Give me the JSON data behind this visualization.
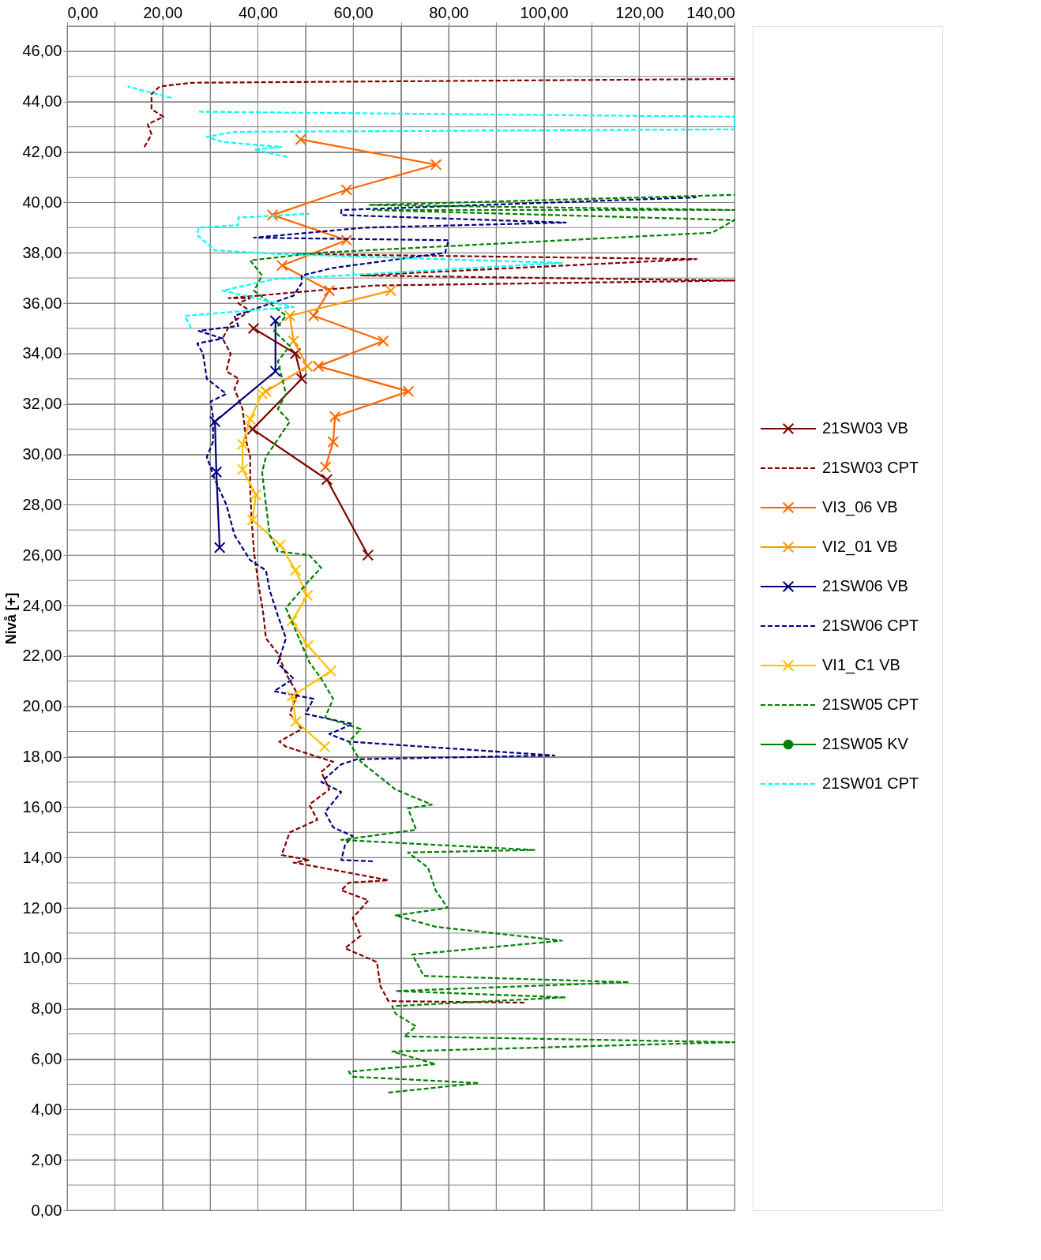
{
  "chart_data": {
    "type": "line",
    "ylabel": "Nivå [+]",
    "xlim": [
      0,
      140
    ],
    "ylim": [
      0,
      47
    ],
    "grid": true,
    "legend": "right",
    "xticks": [
      {
        "value": 0,
        "label": "0,00"
      },
      {
        "value": 10,
        "label": null
      },
      {
        "value": 20,
        "label": "20,00"
      },
      {
        "value": 30,
        "label": null
      },
      {
        "value": 40,
        "label": "40,00"
      },
      {
        "value": 50,
        "label": null
      },
      {
        "value": 60,
        "label": "60,00"
      },
      {
        "value": 70,
        "label": null
      },
      {
        "value": 80,
        "label": "80,00"
      },
      {
        "value": 90,
        "label": null
      },
      {
        "value": 100,
        "label": "100,00"
      },
      {
        "value": 110,
        "label": null
      },
      {
        "value": 120,
        "label": "120,00"
      },
      {
        "value": 130,
        "label": null
      },
      {
        "value": 140,
        "label": "140,00"
      }
    ],
    "yticks": [
      {
        "value": 0,
        "label": "0,00"
      },
      {
        "value": 1,
        "label": null
      },
      {
        "value": 2,
        "label": "2,00"
      },
      {
        "value": 3,
        "label": null
      },
      {
        "value": 4,
        "label": "4,00"
      },
      {
        "value": 5,
        "label": null
      },
      {
        "value": 6,
        "label": "6,00"
      },
      {
        "value": 7,
        "label": null
      },
      {
        "value": 8,
        "label": "8,00"
      },
      {
        "value": 9,
        "label": null
      },
      {
        "value": 10,
        "label": "10,00"
      },
      {
        "value": 11,
        "label": null
      },
      {
        "value": 12,
        "label": "12,00"
      },
      {
        "value": 13,
        "label": null
      },
      {
        "value": 14,
        "label": "14,00"
      },
      {
        "value": 15,
        "label": null
      },
      {
        "value": 16,
        "label": "16,00"
      },
      {
        "value": 17,
        "label": null
      },
      {
        "value": 18,
        "label": "18,00"
      },
      {
        "value": 19,
        "label": null
      },
      {
        "value": 20,
        "label": "20,00"
      },
      {
        "value": 21,
        "label": null
      },
      {
        "value": 22,
        "label": "22,00"
      },
      {
        "value": 23,
        "label": null
      },
      {
        "value": 24,
        "label": "24,00"
      },
      {
        "value": 25,
        "label": null
      },
      {
        "value": 26,
        "label": "26,00"
      },
      {
        "value": 27,
        "label": null
      },
      {
        "value": 28,
        "label": "28,00"
      },
      {
        "value": 29,
        "label": null
      },
      {
        "value": 30,
        "label": "30,00"
      },
      {
        "value": 31,
        "label": null
      },
      {
        "value": 32,
        "label": "32,00"
      },
      {
        "value": 33,
        "label": null
      },
      {
        "value": 34,
        "label": "34,00"
      },
      {
        "value": 35,
        "label": null
      },
      {
        "value": 36,
        "label": "36,00"
      },
      {
        "value": 37,
        "label": null
      },
      {
        "value": 38,
        "label": "38,00"
      },
      {
        "value": 39,
        "label": null
      },
      {
        "value": 40,
        "label": "40,00"
      },
      {
        "value": 41,
        "label": null
      },
      {
        "value": 42,
        "label": "42,00"
      },
      {
        "value": 43,
        "label": null
      },
      {
        "value": 44,
        "label": "44,00"
      },
      {
        "value": 45,
        "label": null
      },
      {
        "value": 46,
        "label": "46,00"
      },
      {
        "value": 47,
        "label": null
      }
    ],
    "series": [
      {
        "name": "21SW03 VB",
        "color": "#800000",
        "marker": "cross",
        "line_style": "solid",
        "x": [
          39.1,
          47.9,
          49.2,
          38.9,
          54.5,
          63.1
        ],
        "values": [
          35.0,
          34.0,
          33.0,
          31.0,
          29.0,
          26.0
        ]
      },
      {
        "name": "21SW03 CPT",
        "color": "#800000",
        "marker": "none",
        "line_style": "dashed",
        "x": [
          95.9,
          67.4,
          65.7,
          65.0,
          58.3,
          61.6,
          59.9,
          63.2,
          57.5,
          59.1,
          67.4,
          53.3,
          47.5,
          50.8,
          45.0,
          46.7,
          52.5,
          50.8,
          55.0,
          53.3,
          55.8,
          45.9,
          44.5,
          49.2,
          46.7,
          48.3,
          45.9,
          44.2,
          41.7,
          41.2,
          40.1,
          39.2,
          38.7,
          38.4,
          38.4,
          37.6,
          36.8,
          35.1,
          36.0,
          33.4,
          34.3,
          32.6,
          34.3,
          38.4,
          35.9,
          38.4,
          33.9,
          64.1,
          140,
          61.6,
          132,
          47.5,
          null,
          16.2,
          17.7,
          16.9,
          20.2,
          17.7,
          17.7,
          19.4,
          26.0,
          140
        ],
        "values": [
          8.24,
          8.3,
          8.9,
          9.85,
          10.4,
          10.9,
          11.6,
          12.3,
          12.7,
          13.0,
          13.1,
          13.6,
          13.8,
          13.9,
          14.1,
          15.0,
          15.5,
          16.1,
          16.7,
          17.4,
          17.8,
          18.4,
          18.6,
          19.1,
          19.7,
          20.5,
          21.3,
          22.1,
          22.7,
          23.6,
          24.9,
          26.1,
          27.4,
          28.6,
          29.9,
          30.5,
          31.8,
          32.6,
          33.0,
          33.3,
          34.0,
          34.6,
          35.2,
          35.7,
          36.0,
          36.2,
          36.2,
          36.7,
          36.9,
          37.1,
          37.75,
          37.95,
          null,
          42.2,
          42.7,
          43.1,
          43.4,
          43.7,
          44.3,
          44.6,
          44.75,
          44.9
        ]
      },
      {
        "name": "VI3_06 VB",
        "color": "#ff6600",
        "marker": "cross",
        "line_style": "solid",
        "x": [
          49.0,
          77.4,
          58.6,
          43.1,
          58.6,
          45.1,
          55.0,
          51.7,
          66.3,
          52.7,
          71.6,
          56.2,
          55.8,
          54.2
        ],
        "values": [
          42.5,
          41.5,
          40.5,
          39.5,
          38.5,
          37.5,
          36.5,
          35.5,
          34.5,
          33.5,
          32.5,
          31.5,
          30.5,
          29.5
        ]
      },
      {
        "name": "VI2_01 VB",
        "color": "#ff9900",
        "marker": "cross",
        "line_style": "solid",
        "x": [
          67.9,
          46.7,
          47.5,
          50.4,
          41.7
        ],
        "values": [
          36.5,
          35.5,
          34.5,
          33.5,
          32.5
        ]
      },
      {
        "name": "21SW06 VB",
        "color": "#000080",
        "marker": "cross",
        "line_style": "solid",
        "x": [
          43.7,
          43.7,
          31.0,
          31.3,
          32.0
        ],
        "values": [
          35.3,
          33.3,
          31.3,
          29.3,
          26.3
        ]
      },
      {
        "name": "21SW06 CPT",
        "color": "#000080",
        "marker": "none",
        "line_style": "dashed",
        "x": [
          64.1,
          57.5,
          58.3,
          59.9,
          55.8,
          54.1,
          57.5,
          53.3,
          57.5,
          60.8,
          102.2,
          59.1,
          55.0,
          59.9,
          50.0,
          51.7,
          43.4,
          47.5,
          44.2,
          45.9,
          44.2,
          42.5,
          41.7,
          38.4,
          35.1,
          33.4,
          31.0,
          29.3,
          30.6,
          30.6,
          30.1,
          33.4,
          29.3,
          28.5,
          27.3,
          32.6,
          27.6,
          35.9,
          35.1,
          47.5,
          49.2,
          49.2,
          55.8,
          79.3,
          80.0,
          39.2,
          62.4,
          104.6,
          57.5,
          57.5,
          132.0
        ],
        "values": [
          13.85,
          13.9,
          14.5,
          14.85,
          15.2,
          15.8,
          16.6,
          17.0,
          17.7,
          17.9,
          18.05,
          18.6,
          18.9,
          19.3,
          19.7,
          20.3,
          20.6,
          21.1,
          21.7,
          22.7,
          23.6,
          24.6,
          25.4,
          25.8,
          26.8,
          28.0,
          29.0,
          29.9,
          30.5,
          31.5,
          32.1,
          32.4,
          33.0,
          34.0,
          34.4,
          34.6,
          34.9,
          35.1,
          35.5,
          36.3,
          36.8,
          37.1,
          37.4,
          38.0,
          38.5,
          38.6,
          39.0,
          39.2,
          39.5,
          39.7,
          40.2
        ]
      },
      {
        "name": "VI1_C1 VB",
        "color": "#ffc000",
        "marker": "cross",
        "line_style": "solid",
        "x": [
          40.9,
          38.4,
          36.8,
          36.8,
          39.6,
          38.9,
          44.7,
          47.9,
          50.4,
          47.2,
          50.5,
          55.3,
          47.2,
          48.0,
          54.0
        ],
        "values": [
          32.4,
          31.4,
          30.4,
          29.4,
          28.4,
          27.4,
          26.4,
          25.4,
          24.4,
          23.4,
          22.4,
          21.4,
          20.4,
          19.4,
          18.4
        ]
      },
      {
        "name": "21SW05 CPT",
        "color": "#008000",
        "marker": "none",
        "line_style": "dashed",
        "x": [
          67.4,
          86.4,
          59.9,
          59.1,
          77.3,
          68.2,
          140,
          70.7,
          73.2,
          68.9,
          68.2,
          104.6,
          68.9,
          117.9,
          74.8,
          72.4,
          103.8,
          77.3,
          68.9,
          79.8,
          77.3,
          75.7,
          71.5,
          98.0,
          57.5,
          73.2,
          71.5,
          76.5,
          68.9,
          61.6,
          59.1,
          61.6,
          54.1,
          55.8,
          53.3,
          50.8,
          45.9,
          50.8,
          53.3,
          50.8,
          44.2,
          42.5,
          41.7,
          40.9,
          41.7,
          46.7,
          44.2,
          45.9,
          44.2,
          46.7,
          43.4,
          45.9,
          39.2,
          40.9,
          38.4,
          52.5,
          135.3,
          140,
          64.1,
          140,
          63.3,
          140
        ],
        "values": [
          4.67,
          5.05,
          5.3,
          5.5,
          5.8,
          6.3,
          6.67,
          6.9,
          7.3,
          7.8,
          8.1,
          8.45,
          8.7,
          9.05,
          9.3,
          10.15,
          10.7,
          11.25,
          11.7,
          12.0,
          12.7,
          13.6,
          14.2,
          14.3,
          14.7,
          15.1,
          15.95,
          16.1,
          16.7,
          17.8,
          18.6,
          19.1,
          19.55,
          20.3,
          21.1,
          21.75,
          23.9,
          25.0,
          25.5,
          26.0,
          26.15,
          26.8,
          28.0,
          29.3,
          29.9,
          31.3,
          31.8,
          32.4,
          33.7,
          34.3,
          34.9,
          35.5,
          36.5,
          37.1,
          37.7,
          38.0,
          38.8,
          39.3,
          39.7,
          39.7,
          39.9,
          40.3
        ]
      },
      {
        "name": "21SW05 KV",
        "color": "#008000",
        "marker": "circle",
        "line_style": "solid"
      },
      {
        "name": "21SW01 CPT",
        "color": "#00ffff",
        "marker": "none",
        "line_style": "dashed",
        "x": [
          26.0,
          24.7,
          47.5,
          32.6,
          43.4,
          103.8,
          44.2,
          31.0,
          27.3,
          27.6,
          35.9,
          35.9,
          50.8,
          null,
          46.2,
          39.2,
          44.9,
          32.6,
          29.3,
          35.1,
          140,
          140,
          27.6,
          null,
          21.9,
          12.7
        ],
        "values": [
          35.0,
          35.5,
          35.85,
          36.5,
          36.95,
          37.6,
          37.95,
          38.1,
          38.7,
          39.0,
          39.1,
          39.4,
          39.55,
          null,
          41.8,
          42.1,
          42.2,
          42.4,
          42.6,
          42.8,
          42.9,
          43.4,
          43.6,
          null,
          44.15,
          44.6
        ]
      }
    ]
  }
}
